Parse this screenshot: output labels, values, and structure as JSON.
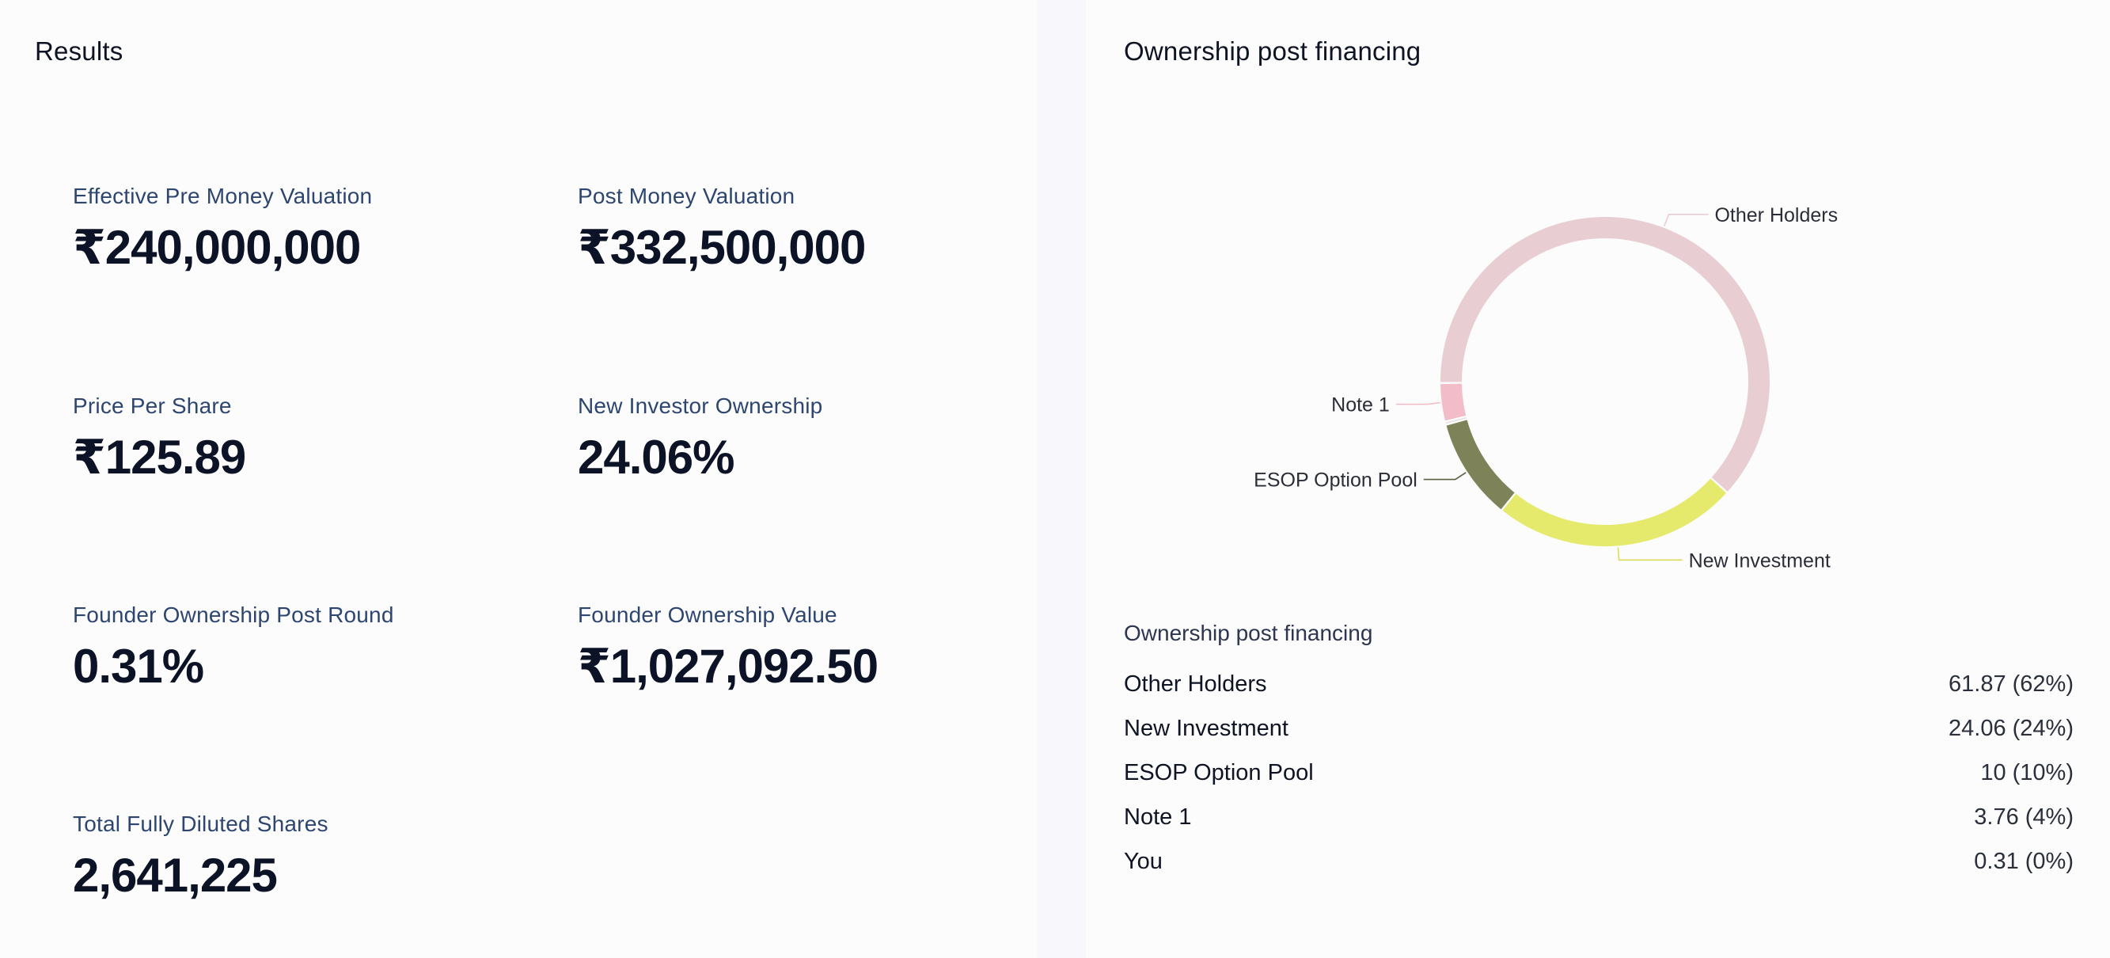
{
  "results": {
    "title": "Results",
    "metrics": [
      {
        "label": "Effective Pre Money Valuation",
        "value": "₹240,000,000"
      },
      {
        "label": "Post Money Valuation",
        "value": "₹332,500,000"
      },
      {
        "label": "Price Per Share",
        "value": "₹125.89"
      },
      {
        "label": "New Investor Ownership",
        "value": "24.06%"
      },
      {
        "label": "Founder Ownership Post Round",
        "value": "0.31%"
      },
      {
        "label": "Founder Ownership Value",
        "value": "₹1,027,092.50"
      },
      {
        "label": "Total Fully Diluted Shares",
        "value": "2,641,225"
      }
    ]
  },
  "ownership": {
    "title": "Ownership post financing",
    "table_title": "Ownership post financing",
    "rows": [
      {
        "name": "Other Holders",
        "value": "61.87 (62%)"
      },
      {
        "name": "New Investment",
        "value": "24.06 (24%)"
      },
      {
        "name": "ESOP Option Pool",
        "value": "10 (10%)"
      },
      {
        "name": "Note 1",
        "value": "3.76 (4%)"
      },
      {
        "name": "You",
        "value": "0.31 (0%)"
      }
    ]
  },
  "chart_data": {
    "type": "pie",
    "title": "Ownership post financing",
    "categories": [
      "Other Holders",
      "New Investment",
      "ESOP Option Pool",
      "Note 1",
      "You"
    ],
    "values": [
      61.87,
      24.06,
      10,
      3.76,
      0.31
    ],
    "colors": [
      "#e8cdd2",
      "#e6ea6c",
      "#7d8258",
      "#f2bcc8",
      "#e0e0e0"
    ],
    "donut": true,
    "labels_shown": [
      "Other Holders",
      "New Investment",
      "ESOP Option Pool",
      "Note 1"
    ]
  }
}
